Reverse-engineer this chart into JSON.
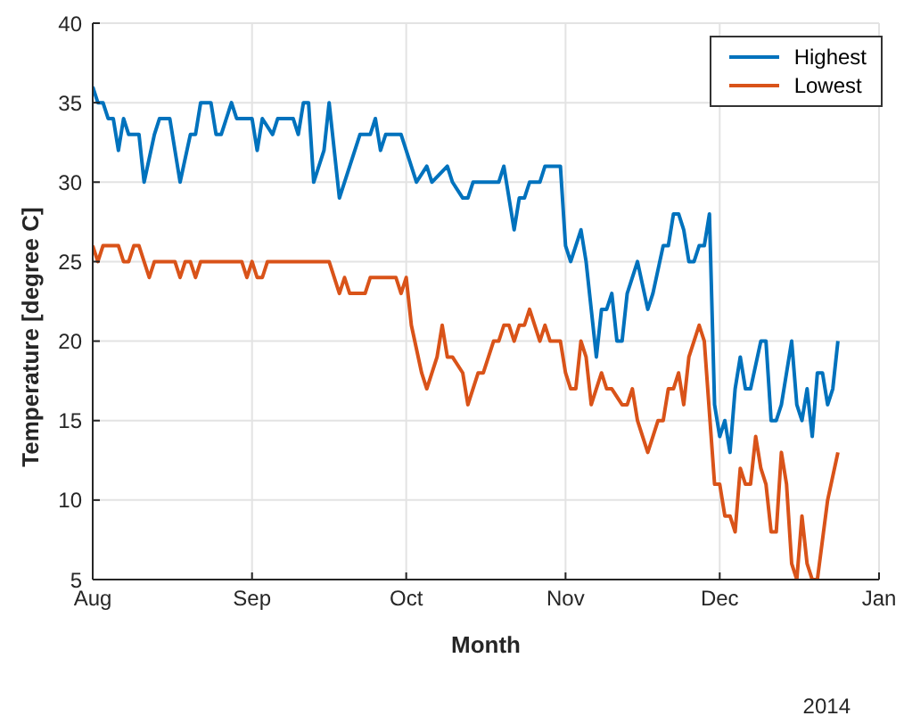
{
  "chart_data": {
    "type": "line",
    "xlabel": "Month",
    "ylabel": "Temperature [degree C]",
    "annotations": [
      "2014"
    ],
    "xlim": [
      "2014-08-01",
      "2015-01-01"
    ],
    "xticks": [
      {
        "value": "2014-08-01",
        "label": "Aug"
      },
      {
        "value": "2014-09-01",
        "label": "Sep"
      },
      {
        "value": "2014-10-01",
        "label": "Oct"
      },
      {
        "value": "2014-11-01",
        "label": "Nov"
      },
      {
        "value": "2014-12-01",
        "label": "Dec"
      },
      {
        "value": "2015-01-01",
        "label": "Jan"
      }
    ],
    "ylim": [
      5,
      40
    ],
    "yticks": [
      5,
      10,
      15,
      20,
      25,
      30,
      35,
      40
    ],
    "grid": true,
    "legend": "top right",
    "marker": "none",
    "line_style": "solid",
    "series": [
      {
        "name": "Highest",
        "color": "#0072bd",
        "x": [
          "2014-08-01",
          "2014-08-02",
          "2014-08-03",
          "2014-08-04",
          "2014-08-05",
          "2014-08-06",
          "2014-08-07",
          "2014-08-08",
          "2014-08-10",
          "2014-08-11",
          "2014-08-13",
          "2014-08-14",
          "2014-08-16",
          "2014-08-18",
          "2014-08-20",
          "2014-08-21",
          "2014-08-22",
          "2014-08-24",
          "2014-08-25",
          "2014-08-26",
          "2014-08-28",
          "2014-08-29",
          "2014-09-01",
          "2014-09-02",
          "2014-09-03",
          "2014-09-05",
          "2014-09-06",
          "2014-09-09",
          "2014-09-10",
          "2014-09-11",
          "2014-09-12",
          "2014-09-13",
          "2014-09-15",
          "2014-09-16",
          "2014-09-18",
          "2014-09-22",
          "2014-09-24",
          "2014-09-25",
          "2014-09-26",
          "2014-09-27",
          "2014-09-30",
          "2014-10-03",
          "2014-10-05",
          "2014-10-06",
          "2014-10-09",
          "2014-10-10",
          "2014-10-12",
          "2014-10-13",
          "2014-10-14",
          "2014-10-19",
          "2014-10-20",
          "2014-10-21",
          "2014-10-22",
          "2014-10-23",
          "2014-10-24",
          "2014-10-25",
          "2014-10-27",
          "2014-10-28",
          "2014-10-31",
          "2014-11-01",
          "2014-11-02",
          "2014-11-04",
          "2014-11-05",
          "2014-11-07",
          "2014-11-08",
          "2014-11-09",
          "2014-11-10",
          "2014-11-11",
          "2014-11-12",
          "2014-11-13",
          "2014-11-15",
          "2014-11-17",
          "2014-11-18",
          "2014-11-20",
          "2014-11-21",
          "2014-11-22",
          "2014-11-23",
          "2014-11-24",
          "2014-11-25",
          "2014-11-26",
          "2014-11-27",
          "2014-11-28",
          "2014-11-29",
          "2014-11-30",
          "2014-12-01",
          "2014-12-02",
          "2014-12-03",
          "2014-12-04",
          "2014-12-05",
          "2014-12-06",
          "2014-12-07",
          "2014-12-09",
          "2014-12-10",
          "2014-12-11",
          "2014-12-12",
          "2014-12-13",
          "2014-12-14",
          "2014-12-15",
          "2014-12-16",
          "2014-12-17",
          "2014-12-18",
          "2014-12-19",
          "2014-12-20",
          "2014-12-21",
          "2014-12-22",
          "2014-12-23",
          "2014-12-24"
        ],
        "values": [
          36,
          35,
          35,
          34,
          34,
          32,
          34,
          33,
          33,
          30,
          33,
          34,
          34,
          30,
          33,
          33,
          35,
          35,
          33,
          33,
          35,
          34,
          34,
          32,
          34,
          33,
          34,
          34,
          33,
          35,
          35,
          30,
          32,
          35,
          29,
          33,
          33,
          34,
          32,
          33,
          33,
          30,
          31,
          30,
          31,
          30,
          29,
          29,
          30,
          30,
          31,
          29,
          27,
          29,
          29,
          30,
          30,
          31,
          31,
          26,
          25,
          27,
          25,
          19,
          22,
          22,
          23,
          20,
          20,
          23,
          25,
          22,
          23,
          26,
          26,
          28,
          28,
          27,
          25,
          25,
          26,
          26,
          28,
          16,
          14,
          15,
          13,
          17,
          19,
          17,
          17,
          20,
          20,
          15,
          15,
          16,
          18,
          20,
          16,
          15,
          17,
          14,
          18,
          18,
          16,
          17,
          20
        ]
      },
      {
        "name": "Lowest",
        "color": "#d95319",
        "x": [
          "2014-08-01",
          "2014-08-02",
          "2014-08-03",
          "2014-08-06",
          "2014-08-07",
          "2014-08-08",
          "2014-08-09",
          "2014-08-10",
          "2014-08-12",
          "2014-08-13",
          "2014-08-17",
          "2014-08-18",
          "2014-08-19",
          "2014-08-20",
          "2014-08-21",
          "2014-08-22",
          "2014-08-30",
          "2014-08-31",
          "2014-09-01",
          "2014-09-02",
          "2014-09-03",
          "2014-09-04",
          "2014-09-16",
          "2014-09-18",
          "2014-09-19",
          "2014-09-20",
          "2014-09-23",
          "2014-09-24",
          "2014-09-29",
          "2014-09-30",
          "2014-10-01",
          "2014-10-02",
          "2014-10-04",
          "2014-10-05",
          "2014-10-07",
          "2014-10-08",
          "2014-10-09",
          "2014-10-10",
          "2014-10-12",
          "2014-10-13",
          "2014-10-15",
          "2014-10-16",
          "2014-10-18",
          "2014-10-19",
          "2014-10-20",
          "2014-10-21",
          "2014-10-22",
          "2014-10-23",
          "2014-10-24",
          "2014-10-25",
          "2014-10-27",
          "2014-10-28",
          "2014-10-29",
          "2014-10-31",
          "2014-11-01",
          "2014-11-02",
          "2014-11-03",
          "2014-11-04",
          "2014-11-05",
          "2014-11-06",
          "2014-11-08",
          "2014-11-09",
          "2014-11-10",
          "2014-11-12",
          "2014-11-13",
          "2014-11-14",
          "2014-11-15",
          "2014-11-16",
          "2014-11-17",
          "2014-11-18",
          "2014-11-19",
          "2014-11-20",
          "2014-11-21",
          "2014-11-22",
          "2014-11-23",
          "2014-11-24",
          "2014-11-25",
          "2014-11-26",
          "2014-11-27",
          "2014-11-28",
          "2014-11-30",
          "2014-12-01",
          "2014-12-02",
          "2014-12-03",
          "2014-12-04",
          "2014-12-05",
          "2014-12-06",
          "2014-12-07",
          "2014-12-08",
          "2014-12-09",
          "2014-12-10",
          "2014-12-11",
          "2014-12-12",
          "2014-12-13",
          "2014-12-14",
          "2014-12-15",
          "2014-12-16",
          "2014-12-17",
          "2014-12-18",
          "2014-12-19",
          "2014-12-20",
          "2014-12-22",
          "2014-12-24"
        ],
        "values": [
          26,
          25,
          26,
          26,
          25,
          25,
          26,
          26,
          24,
          25,
          25,
          24,
          25,
          25,
          24,
          25,
          25,
          24,
          25,
          24,
          24,
          25,
          25,
          23,
          24,
          23,
          23,
          24,
          24,
          23,
          24,
          21,
          18,
          17,
          19,
          21,
          19,
          19,
          18,
          16,
          18,
          18,
          20,
          20,
          21,
          21,
          20,
          21,
          21,
          22,
          20,
          21,
          20,
          20,
          18,
          17,
          17,
          20,
          19,
          16,
          18,
          17,
          17,
          16,
          16,
          17,
          15,
          14,
          13,
          14,
          15,
          15,
          17,
          17,
          18,
          16,
          19,
          20,
          21,
          20,
          11,
          11,
          9,
          9,
          8,
          12,
          11,
          11,
          14,
          12,
          11,
          8,
          8,
          13,
          11,
          6,
          5,
          9,
          6,
          5,
          5,
          10,
          13
        ]
      }
    ]
  }
}
